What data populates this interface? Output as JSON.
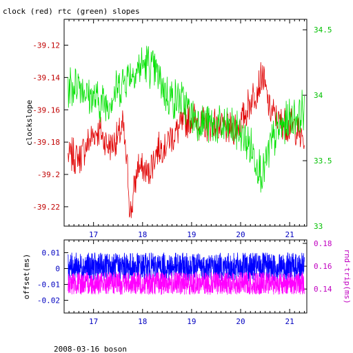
{
  "header": {
    "title": "clock (red) rtc (green) slopes"
  },
  "footer": {
    "text": "2008-03-16 boson"
  },
  "chart_data": [
    {
      "type": "line",
      "name_hint": "upper",
      "ylabel": "clockslope",
      "y2label": "",
      "xlim": [
        16.4,
        21.35
      ],
      "ylim": [
        -39.232,
        -39.104
      ],
      "y2lim": [
        33.0,
        34.58
      ],
      "xticks": [
        "17",
        "18",
        "19",
        "20",
        "21"
      ],
      "yticks": [
        "-39.12",
        "-39.14",
        "-39.16",
        "-39.18",
        "-39.2",
        "-39.22"
      ],
      "y2ticks": [
        "34.5",
        "34",
        "33.5",
        "33"
      ],
      "colors": {
        "series1": "#e00000",
        "series2": "#00e000",
        "left_axis": "#c00000",
        "right_axis": "#00c000"
      },
      "series": [
        {
          "axis": "left",
          "color": "#e00000",
          "x": [
            16.48,
            16.7,
            16.9,
            17.1,
            17.3,
            17.5,
            17.6,
            17.7,
            17.75,
            17.9,
            18.1,
            18.3,
            18.5,
            18.8,
            19.0,
            19.2,
            19.5,
            19.8,
            20.0,
            20.2,
            20.45,
            20.6,
            20.8,
            21.0,
            21.1,
            21.2,
            21.3
          ],
          "y": [
            -39.188,
            -39.19,
            -39.18,
            -39.172,
            -39.182,
            -39.178,
            -39.17,
            -39.2,
            -39.226,
            -39.195,
            -39.2,
            -39.185,
            -39.18,
            -39.17,
            -39.165,
            -39.168,
            -39.17,
            -39.172,
            -39.168,
            -39.155,
            -39.14,
            -39.16,
            -39.168,
            -39.17,
            -39.17,
            -39.175,
            -39.18
          ]
        },
        {
          "axis": "right",
          "color": "#00e000",
          "x": [
            16.48,
            16.7,
            16.9,
            17.1,
            17.3,
            17.5,
            17.7,
            17.9,
            18.1,
            18.3,
            18.5,
            18.8,
            19.0,
            19.2,
            19.5,
            19.8,
            20.0,
            20.2,
            20.45,
            20.6,
            20.8,
            21.0,
            21.2,
            21.3
          ],
          "y": [
            34.05,
            34.1,
            34.0,
            33.95,
            33.95,
            34.05,
            34.15,
            34.2,
            34.25,
            34.15,
            34.0,
            33.95,
            33.85,
            33.8,
            33.75,
            33.75,
            33.7,
            33.6,
            33.4,
            33.6,
            33.75,
            33.8,
            33.85,
            33.9
          ]
        }
      ]
    },
    {
      "type": "line",
      "name_hint": "lower",
      "ylabel": "offset(ms)",
      "y2label": "rnd-trip(ms)",
      "xlim": [
        16.4,
        21.35
      ],
      "ylim": [
        -0.028,
        0.018
      ],
      "y2lim": [
        0.119,
        0.183
      ],
      "xticks": [
        "17",
        "18",
        "19",
        "20",
        "21"
      ],
      "yticks": [
        "0.01",
        "0",
        "-0.01",
        "-0.02"
      ],
      "y2ticks": [
        "0.18",
        "0.16",
        "0.14"
      ],
      "colors": {
        "series1": "#0000ff",
        "series2": "#ff00ff",
        "left_axis": "#0000c0",
        "right_axis": "#c000c0"
      },
      "series": [
        {
          "axis": "left",
          "color": "#0000ff",
          "mean": 0.001,
          "spread": 0.009,
          "x": [
            16.48,
            21.3
          ]
        },
        {
          "axis": "right",
          "color": "#ff00ff",
          "mean": 0.145,
          "spread": 0.01,
          "x": [
            16.48,
            21.3
          ]
        }
      ]
    }
  ]
}
